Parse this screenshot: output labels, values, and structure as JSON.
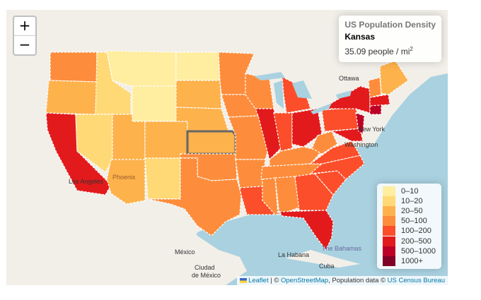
{
  "zoom": {
    "in_label": "+",
    "out_label": "−"
  },
  "info": {
    "title": "US Population Density",
    "state": "Kansas",
    "density": "35.09 people / mi",
    "density_sup": "2"
  },
  "legend": [
    {
      "label": "0–10",
      "color": "#FFEDA0"
    },
    {
      "label": "10–20",
      "color": "#FED976"
    },
    {
      "label": "20–50",
      "color": "#FEB24C"
    },
    {
      "label": "50–100",
      "color": "#FD8D3C"
    },
    {
      "label": "100–200",
      "color": "#FC4E2A"
    },
    {
      "label": "200–500",
      "color": "#E31A1C"
    },
    {
      "label": "500–1000",
      "color": "#BD0026"
    },
    {
      "label": "1000+",
      "color": "#800026"
    }
  ],
  "map_labels": {
    "ottawa": "Ottawa",
    "new_york": "New York",
    "washington": "Washington",
    "los_angeles": "Los Angeles",
    "phoenix": "Phoenix",
    "mexico": "México",
    "ciudad_de_mexico_1": "Ciudad",
    "ciudad_de_mexico_2": "de México",
    "la_habana": "La Habana",
    "the_bahamas": "The Bahamas",
    "cuba": "Cuba",
    "mexico_state": "Mexico"
  },
  "attribution": {
    "leaflet": "Leaflet",
    "sep": " | © ",
    "osm": "OpenStreetMap",
    "pop": ", Population data © ",
    "census": "US Census Bureau"
  }
}
